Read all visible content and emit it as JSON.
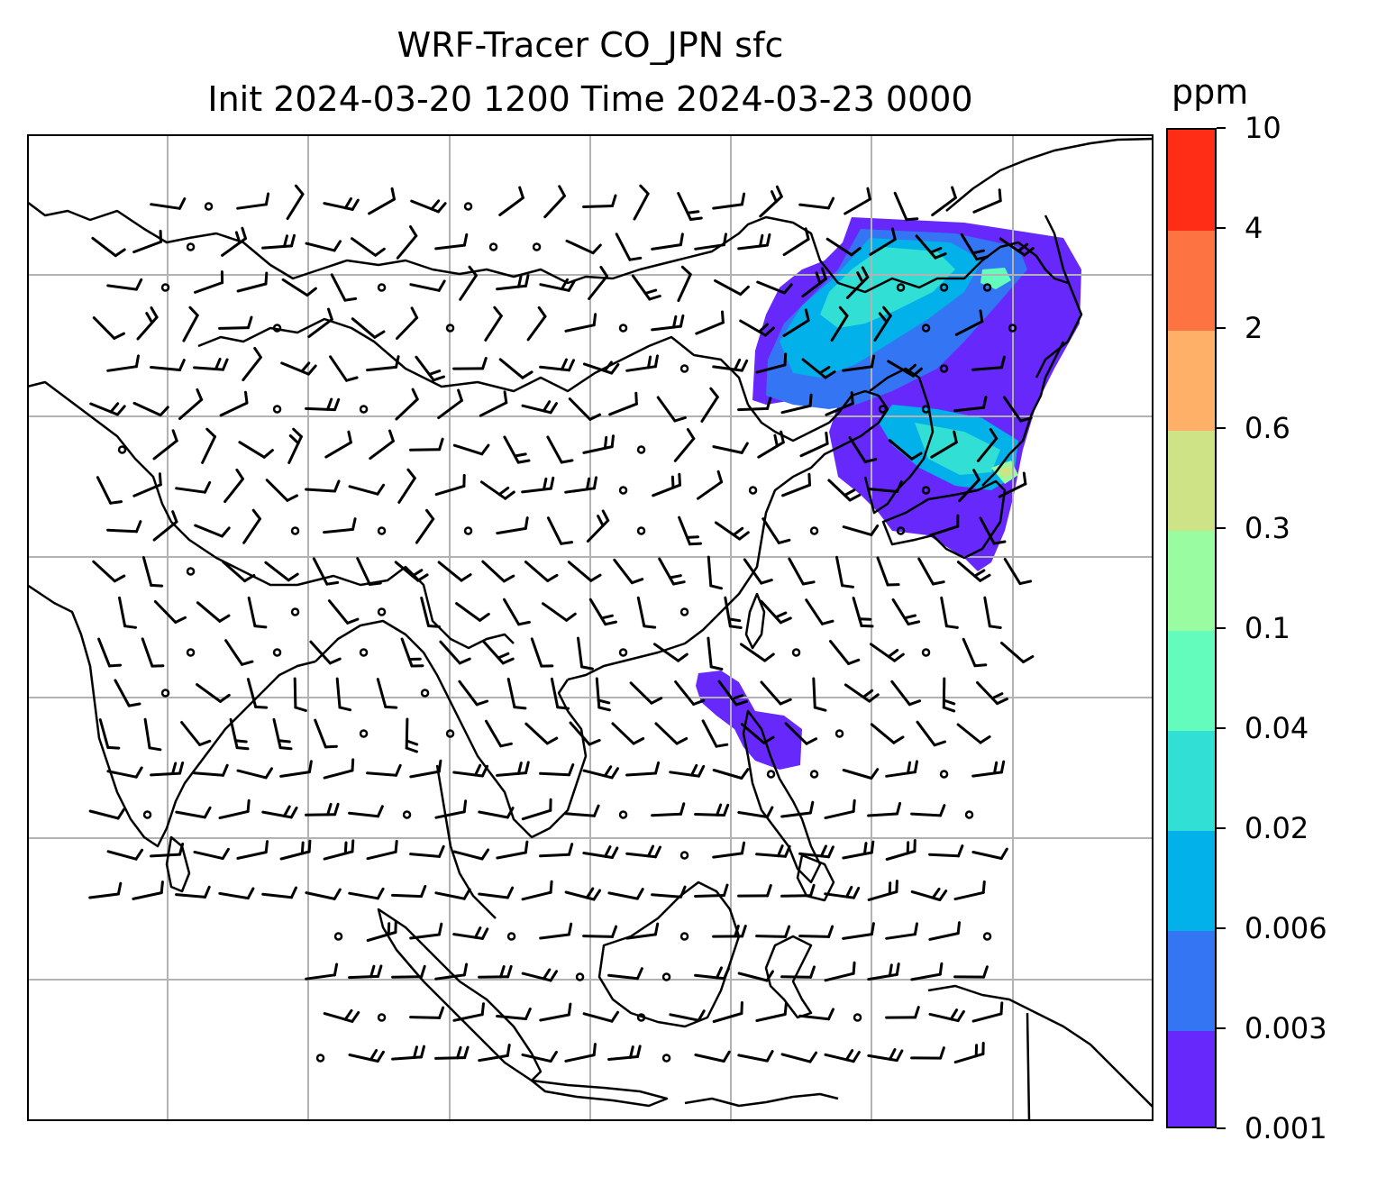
{
  "title": {
    "line1": "WRF-Tracer CO_JPN sfc",
    "line2": "Init 2024-03-20 1200 Time 2024-03-23 0000"
  },
  "colorbar": {
    "unit": "ppm",
    "levels": [
      "0.001",
      "0.003",
      "0.006",
      "0.02",
      "0.04",
      "0.1",
      "0.3",
      "0.6",
      "2",
      "4",
      "10"
    ],
    "colors": [
      "#6728fc",
      "#3475f3",
      "#02b0ea",
      "#32dfd5",
      "#64fcbd",
      "#9afca0",
      "#cde386",
      "#feb068",
      "#fe7342",
      "#ff2c16"
    ]
  },
  "map": {
    "gridline_color": "#b2b2b2",
    "coastline_color": "#000000",
    "wind_barb_color": "#000000",
    "plumes": [
      {
        "name": "northeast-asia-plume",
        "levels": [
          "0.001",
          "0.003",
          "0.006",
          "0.02",
          "0.04",
          "0.1",
          "0.3"
        ]
      },
      {
        "name": "philippine-sea-plume",
        "levels": [
          "0.001"
        ]
      }
    ]
  }
}
